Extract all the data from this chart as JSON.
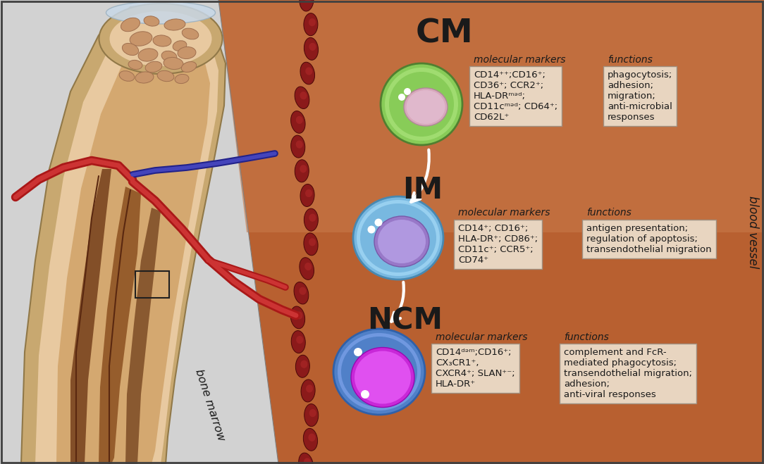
{
  "bg_left_color": "#d3d3d3",
  "bg_right_top_color": "#c87a50",
  "bg_right_bottom_color": "#a85830",
  "vessel_cell_color": "#8B1A1A",
  "vessel_cell_edge": "#5a0a0a",
  "bone_outer_color": "#c8a878",
  "bone_cortex_color": "#e8c9a0",
  "bone_marrow_fill": "#d4a070",
  "bone_dark_marrow": "#7a4520",
  "bone_marrow_text": "bone marrow",
  "blood_vessel_text": "blood vessel",
  "cm_label": "CM",
  "im_label": "IM",
  "ncm_label": "NCM",
  "cm_cell_outer": "#88cc60",
  "cm_cell_inner": "#d090a8",
  "im_cell_outer": "#80b8e0",
  "im_cell_inner": "#9070c0",
  "ncm_cell_outer": "#5080c8",
  "ncm_cell_inner": "#c020d0",
  "arrow_color": "#ffffff",
  "box_bg_color": "#e8d5c0",
  "box_edge_color": "#a09080",
  "text_dark": "#1a1a1a",
  "cm_markers_title": "molecular markers",
  "cm_markers_text": "CD14⁺⁺;CD16⁺;\nCD36⁺; CCR2⁺;\nHLA-DRᵐᵊᵈ;\nCD11cᵐᵊᵈ; CD64⁺;\nCD62L⁺",
  "cm_functions_title": "functions",
  "cm_functions_text": "phagocytosis;\nadhesion;\nmigration;\nanti-microbial\nresponses",
  "im_markers_title": "molecular markers",
  "im_markers_text": "CD14⁺; CD16⁺;\nHLA-DR⁺; CD86⁺;\nCD11c⁺; CCR5⁺;\nCD74⁺",
  "im_functions_title": "functions",
  "im_functions_text": "antigen presentation;\nregulation of apoptosis;\ntransendothelial migration",
  "ncm_markers_title": "molecular markers",
  "ncm_markers_text": "CD14ᵈᵊᵐ;CD16⁺;\nCX₃CR1⁺,\nCXCR4⁺; SLAN⁺⁻;\nHLA-DR⁺",
  "ncm_functions_title": "functions",
  "ncm_functions_text": "complement and FcR-\nmediated phagocytosis;\ntransendothelial migration;\nadhesion;\nanti-viral responses"
}
